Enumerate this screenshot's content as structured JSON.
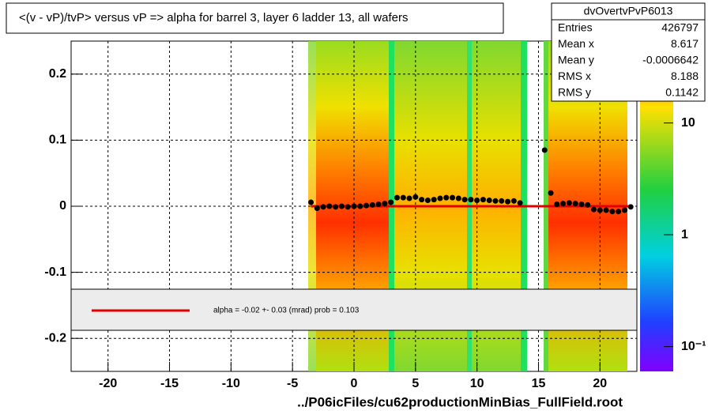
{
  "chart_data": {
    "type": "profile",
    "title": "<(v - vP)/tvP> versus   vP => alpha for barrel 3, layer 6 ladder 13, all wafers",
    "x_label": "../P06icFiles/cu62productionMinBias_FullField.root",
    "xlim": [
      -23,
      23
    ],
    "xticks": [
      -20,
      -15,
      -10,
      -5,
      0,
      5,
      10,
      15,
      20
    ],
    "ylim": [
      -0.25,
      0.25
    ],
    "yticks": [
      -0.2,
      -0.1,
      0,
      0.1,
      0.2
    ],
    "grid": true,
    "zlim": [
      0.06,
      54
    ],
    "zlog": true,
    "zticks": [
      {
        "value": 10,
        "label": "10"
      },
      {
        "value": 1,
        "label": "1"
      },
      {
        "value": 0.1,
        "label": "10⁻¹"
      }
    ],
    "x": [
      -3.5,
      -3,
      -2.5,
      -2,
      -1.5,
      -1,
      -0.5,
      0,
      0.5,
      1,
      1.5,
      2,
      2.5,
      3,
      3.5,
      4,
      4.5,
      5,
      5.5,
      6,
      6.5,
      7,
      7.5,
      8,
      8.5,
      9,
      9.5,
      10,
      10.5,
      11,
      11.5,
      12,
      12.5,
      13,
      13.5,
      15.5,
      16,
      16.5,
      17,
      17.5,
      18,
      18.5,
      19,
      19.5,
      20,
      20.5,
      21,
      21.5,
      22,
      22.5
    ],
    "values": [
      0.006,
      -0.003,
      -0.001,
      0,
      -0.001,
      0,
      -0.001,
      0,
      0,
      0.001,
      0.002,
      0.003,
      0.004,
      0.006,
      0.013,
      0.013,
      0.012,
      0.014,
      0.01,
      0.009,
      0.01,
      0.012,
      0.013,
      0.013,
      0.012,
      0.01,
      0.01,
      0.009,
      0.01,
      0.009,
      0.008,
      0.008,
      0.007,
      0.008,
      0.005,
      0.085,
      0.02,
      0.003,
      0.004,
      0.005,
      0.004,
      0.003,
      0.002,
      -0.005,
      -0.006,
      -0.006,
      -0.008,
      -0.008,
      -0.006,
      -0.001
    ],
    "fit": {
      "name": "alpha =   -0.02 +-  0.03 (mrad) prob = 0.103",
      "color": "#e00000",
      "xlim": [
        -3.5,
        22.5
      ],
      "value": 0
    },
    "stats": {
      "name": "dvOvertvPvP6013",
      "rows": [
        [
          "Entries",
          "426797"
        ],
        [
          "Mean x",
          "8.617"
        ],
        [
          "Mean y",
          "-0.0006642"
        ],
        [
          "RMS x",
          "8.188"
        ],
        [
          "RMS y",
          "0.1142"
        ]
      ]
    }
  }
}
